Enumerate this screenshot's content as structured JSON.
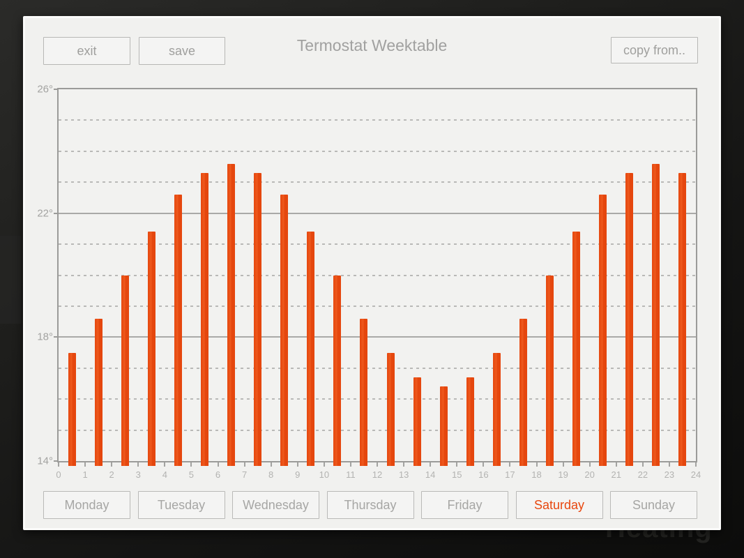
{
  "window": {
    "background_watermark": "Heating"
  },
  "header": {
    "exit_label": "exit",
    "save_label": "save",
    "title": "Termostat Weektable",
    "copy_from_label": "copy from.."
  },
  "chart_data": {
    "type": "bar",
    "title": "Termostat Weektable",
    "categories": [
      0,
      1,
      2,
      3,
      4,
      5,
      6,
      7,
      8,
      9,
      10,
      11,
      12,
      13,
      14,
      15,
      16,
      17,
      18,
      19,
      20,
      21,
      22,
      23
    ],
    "values": [
      17.5,
      18.6,
      20.0,
      21.4,
      22.6,
      23.3,
      23.6,
      23.3,
      22.6,
      21.4,
      20.0,
      18.6,
      17.5,
      16.7,
      16.4,
      16.7,
      17.5,
      18.6,
      20.0,
      21.4,
      22.6,
      23.3,
      23.6,
      23.3
    ],
    "ylim": [
      14,
      26
    ],
    "xlim": [
      0,
      24
    ],
    "ytick_values": [
      26,
      22,
      18,
      14
    ],
    "ytick_labels": [
      "26°",
      "22°",
      "18°",
      "14°"
    ],
    "solid_gridlines": [
      18,
      22
    ],
    "dashed_gridlines": [
      15,
      16,
      17,
      19,
      20,
      21,
      23,
      24,
      25
    ],
    "xtick_labels": [
      "0",
      "1",
      "2",
      "3",
      "4",
      "5",
      "6",
      "7",
      "8",
      "9",
      "10",
      "11",
      "12",
      "13",
      "14",
      "15",
      "16",
      "17",
      "18",
      "19",
      "20",
      "21",
      "22",
      "23",
      "24"
    ],
    "bar_color": "#e5470e",
    "grid": true,
    "legend": false,
    "xlabel": "",
    "ylabel": ""
  },
  "days": {
    "selected": "Saturday",
    "selected_color": "#e8470f",
    "items": [
      {
        "label": "Monday",
        "selected": false
      },
      {
        "label": "Tuesday",
        "selected": false
      },
      {
        "label": "Wednesday",
        "selected": false
      },
      {
        "label": "Thursday",
        "selected": false
      },
      {
        "label": "Friday",
        "selected": false
      },
      {
        "label": "Saturday",
        "selected": true
      },
      {
        "label": "Sunday",
        "selected": false
      }
    ]
  }
}
